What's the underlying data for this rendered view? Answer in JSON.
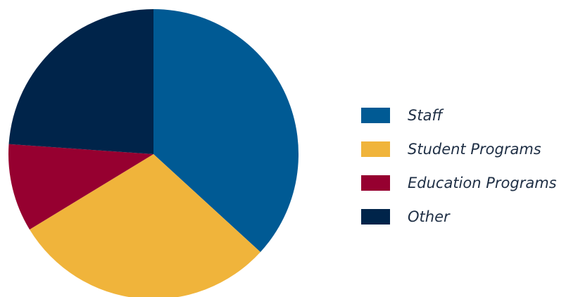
{
  "chart_data": {
    "type": "pie",
    "title": "",
    "legend_position": "right",
    "slices": [
      {
        "label": "Staff",
        "value": 36.8,
        "color": "#005a94"
      },
      {
        "label": "Student Programs",
        "value": 29.5,
        "color": "#f0b43b"
      },
      {
        "label": "Education Programs",
        "value": 9.8,
        "color": "#960030"
      },
      {
        "label": "Other",
        "value": 23.9,
        "color": "#00244a"
      }
    ],
    "start_angle_deg": 0,
    "direction": "clockwise"
  }
}
